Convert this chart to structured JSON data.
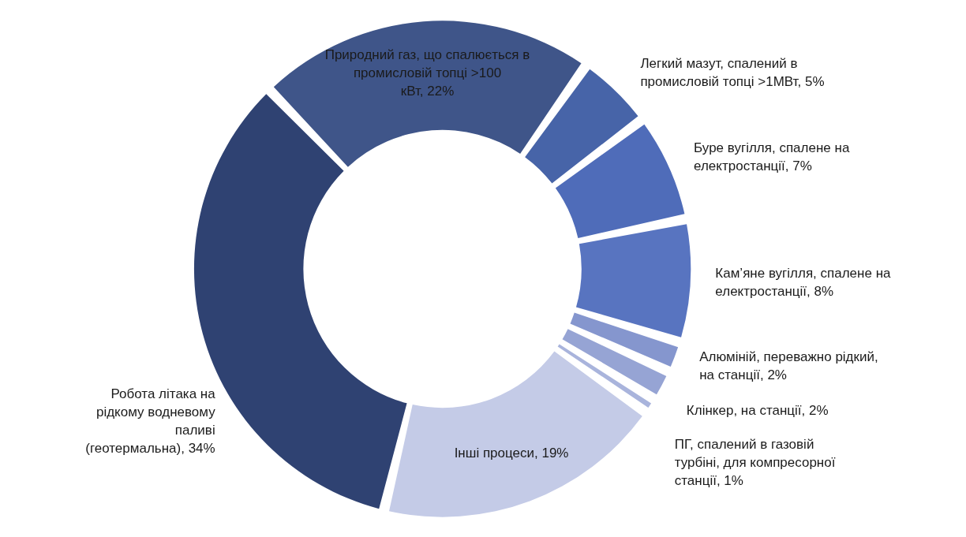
{
  "chart_data": {
    "type": "donut",
    "categories": [
      "Природний газ, що спалюється в промисловій топці >100 кВт",
      "Легкий мазут, спалений в промисловій топці >1МВт",
      "Буре вугілля, спалене на електростанції",
      "Кам’яне вугілля, спалене на електростанції",
      "Алюміній, переважно рідкий, на станції",
      "Клінкер, на станції",
      "ПГ, спалений в газовій турбіні, для компресорної станції",
      "Інші процеси",
      "Робота літака на рідкому водневому паливі (геотермальна)"
    ],
    "values": [
      22,
      5,
      7,
      8,
      2,
      2,
      1,
      19,
      34
    ],
    "value_labels": [
      "22%",
      "5%",
      "7%",
      "8%",
      "2%",
      "2%",
      "1%",
      "19%",
      "34%"
    ],
    "colors": [
      "#3f5589",
      "#4764a8",
      "#4f6cb9",
      "#5874c0",
      "#8596ce",
      "#96a4d4",
      "#a9b4dc",
      "#c4cbe7",
      "#2f4272"
    ]
  }
}
